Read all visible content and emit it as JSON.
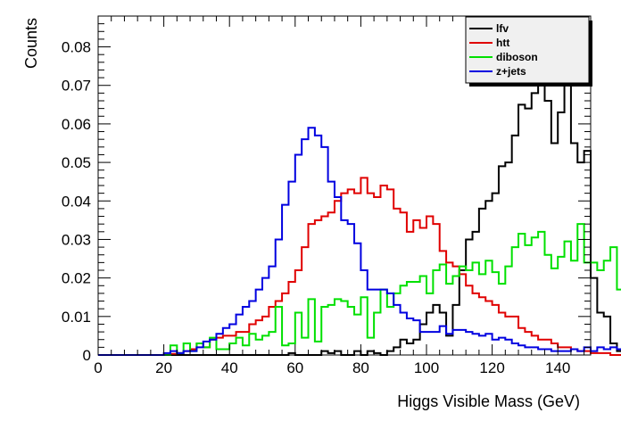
{
  "chart_data": {
    "type": "line",
    "style": "step-histogram",
    "xlabel": "Higgs Visible Mass (GeV)",
    "ylabel": "Counts",
    "xlim": [
      0,
      150
    ],
    "ylim": [
      0,
      0.088
    ],
    "xticks": [
      0,
      20,
      40,
      60,
      80,
      100,
      120,
      140
    ],
    "xtick_labels": [
      "0",
      "20",
      "40",
      "60",
      "80",
      "100",
      "120",
      "140"
    ],
    "yticks": [
      0,
      0.01,
      0.02,
      0.03,
      0.04,
      0.05,
      0.06,
      0.07,
      0.08
    ],
    "ytick_labels": [
      "0",
      "0.01",
      "0.02",
      "0.03",
      "0.04",
      "0.05",
      "0.06",
      "0.07",
      "0.08"
    ],
    "grid": false,
    "legend_position": "top-right",
    "bin_edges_start": 0,
    "bin_width": 2,
    "series": [
      {
        "name": "lfv",
        "color": "#000000",
        "values": [
          0,
          0,
          0,
          0,
          0,
          0,
          0,
          0,
          0,
          0,
          0,
          0,
          0,
          0,
          0,
          0,
          0,
          0,
          0,
          0,
          0,
          0,
          0,
          0,
          0,
          0,
          0,
          0,
          0,
          0.0005,
          0,
          0,
          0,
          0,
          0.001,
          0.0005,
          0.001,
          0,
          0,
          0.001,
          0,
          0.001,
          0.0005,
          0,
          0.001,
          0.002,
          0.004,
          0.003,
          0.004,
          0.008,
          0.011,
          0.013,
          0.011,
          0.005,
          0.013,
          0.022,
          0.03,
          0.032,
          0.038,
          0.04,
          0.042,
          0.049,
          0.05,
          0.057,
          0.065,
          0.064,
          0.068,
          0.074,
          0.066,
          0.055,
          0.063,
          0.082,
          0.055,
          0.05,
          0.053,
          0.02,
          0.011,
          0.01,
          0.003,
          0.001
        ]
      },
      {
        "name": "htt",
        "color": "#e00000",
        "values": [
          0,
          0,
          0,
          0,
          0,
          0,
          0,
          0,
          0,
          0,
          0,
          0.0003,
          0.0005,
          0.001,
          0.0015,
          0.003,
          0.002,
          0.004,
          0.0045,
          0.005,
          0.005,
          0.006,
          0.006,
          0.008,
          0.009,
          0.01,
          0.0125,
          0.014,
          0.016,
          0.019,
          0.022,
          0.028,
          0.034,
          0.035,
          0.036,
          0.037,
          0.04,
          0.042,
          0.043,
          0.042,
          0.046,
          0.042,
          0.041,
          0.044,
          0.043,
          0.038,
          0.037,
          0.032,
          0.035,
          0.033,
          0.036,
          0.034,
          0.027,
          0.024,
          0.023,
          0.021,
          0.018,
          0.016,
          0.015,
          0.014,
          0.013,
          0.011,
          0.01,
          0.01,
          0.007,
          0.006,
          0.005,
          0.004,
          0.004,
          0.003,
          0.002,
          0.002,
          0.0015,
          0.001,
          0.001,
          0.0005,
          0.0005,
          0.0005,
          0,
          0
        ]
      },
      {
        "name": "diboson",
        "color": "#00e000",
        "values": [
          0,
          0,
          0,
          0,
          0,
          0,
          0,
          0,
          0,
          0,
          0,
          0.0025,
          0.0005,
          0.003,
          0.001,
          0.003,
          0.002,
          0.0045,
          0.0015,
          0.0015,
          0.003,
          0.0045,
          0.0025,
          0.0055,
          0.004,
          0.005,
          0.006,
          0.0125,
          0.0025,
          0.003,
          0.011,
          0.0045,
          0.0145,
          0.0035,
          0.0125,
          0.013,
          0.0145,
          0.014,
          0.0125,
          0.0105,
          0.015,
          0.0045,
          0.011,
          0.017,
          0.0125,
          0.016,
          0.018,
          0.019,
          0.019,
          0.0205,
          0.016,
          0.022,
          0.0235,
          0.0185,
          0.0205,
          0.023,
          0.022,
          0.024,
          0.021,
          0.0245,
          0.0215,
          0.0185,
          0.023,
          0.028,
          0.0315,
          0.0285,
          0.0305,
          0.032,
          0.026,
          0.0225,
          0.0255,
          0.0295,
          0.0245,
          0.034,
          0.024,
          0.024,
          0.022,
          0.0245,
          0.028,
          0.017
        ]
      },
      {
        "name": "z+jets",
        "color": "#0000e0",
        "values": [
          0,
          0,
          0,
          0,
          0,
          0,
          0,
          0,
          0,
          0,
          0.0005,
          0.001,
          0.0005,
          0.001,
          0.001,
          0.002,
          0.0035,
          0.004,
          0.0055,
          0.007,
          0.008,
          0.0105,
          0.0125,
          0.014,
          0.017,
          0.02,
          0.023,
          0.03,
          0.039,
          0.045,
          0.052,
          0.056,
          0.059,
          0.057,
          0.054,
          0.045,
          0.041,
          0.035,
          0.034,
          0.029,
          0.022,
          0.017,
          0.017,
          0.017,
          0.016,
          0.013,
          0.011,
          0.0095,
          0.009,
          0.006,
          0.006,
          0.006,
          0.0075,
          0.0055,
          0.0065,
          0.0065,
          0.006,
          0.0055,
          0.005,
          0.0055,
          0.004,
          0.0045,
          0.004,
          0.003,
          0.0025,
          0.002,
          0.002,
          0.0015,
          0.0015,
          0.001,
          0.001,
          0.001,
          0.0015,
          0.001,
          0.002,
          0.001,
          0.002,
          0.0015,
          0.002,
          0.0015
        ]
      }
    ]
  }
}
